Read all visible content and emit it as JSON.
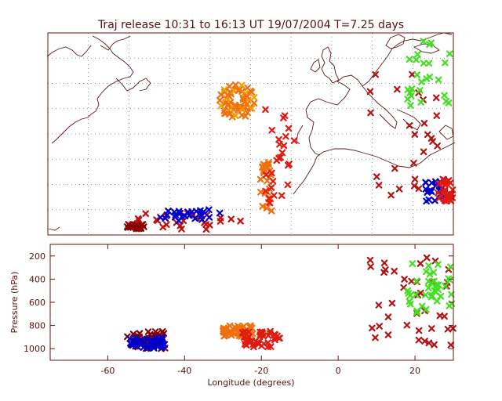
{
  "chart_data": [
    {
      "type": "scatter",
      "title": "Traj release 10:31 to 16:13 UT 19/07/2004    T=7.25 days",
      "marker": "x",
      "projection": "map",
      "x_range": [
        -75,
        30
      ],
      "y_range": [
        0,
        72
      ],
      "grid": true,
      "colors": [
        "#0000cc",
        "#8b0000",
        "#b21414",
        "#e01a10",
        "#f07010",
        "#f0a000",
        "#f0d000",
        "#40e020"
      ],
      "clusters": [
        {
          "name": "",
          "color": "#8b0000",
          "x": [
            -55,
            -50
          ],
          "y": [
            2,
            4
          ]
        },
        {
          "name": "",
          "color": "#c41010",
          "x": [
            -52,
            -25
          ],
          "y": [
            2,
            8
          ]
        },
        {
          "name": "",
          "color": "#0000cc",
          "x": [
            -46,
            -30
          ],
          "y": [
            5,
            9
          ]
        },
        {
          "name": "",
          "color": "#f07010",
          "x": [
            -30,
            -22
          ],
          "y": [
            42,
            52
          ]
        },
        {
          "name": "",
          "color": "#f07010",
          "x": [
            -20,
            -17
          ],
          "y": [
            8,
            26
          ]
        },
        {
          "name": "",
          "color": "#e01a10",
          "x": [
            -19,
            -11
          ],
          "y": [
            10,
            45
          ]
        },
        {
          "name": "",
          "color": "#b21414",
          "x": [
            8,
            26
          ],
          "y": [
            14,
            58
          ]
        },
        {
          "name": "",
          "color": "#40e020",
          "x": [
            18,
            30
          ],
          "y": [
            45,
            70
          ]
        },
        {
          "name": "",
          "color": "#0000cc",
          "x": [
            22,
            28
          ],
          "y": [
            12,
            20
          ]
        },
        {
          "name": "",
          "color": "#e01a10",
          "x": [
            26,
            30
          ],
          "y": [
            12,
            20
          ]
        }
      ]
    },
    {
      "type": "scatter",
      "xlabel": "Longitude  (degrees)",
      "ylabel": "Pressure  (hPa)",
      "x_range": [
        -75,
        30
      ],
      "y_range": [
        1100,
        100
      ],
      "x_ticks": [
        "-60",
        "-40",
        "-20",
        "0",
        "20"
      ],
      "y_ticks": [
        "200",
        "400",
        "600",
        "800",
        "1000"
      ],
      "marker": "x",
      "clusters": [
        {
          "name": "",
          "color": "#8b0000",
          "x": [
            -55,
            -45
          ],
          "y": [
            850,
            1000
          ]
        },
        {
          "name": "",
          "color": "#0000cc",
          "x": [
            -55,
            -45
          ],
          "y": [
            900,
            1000
          ]
        },
        {
          "name": "",
          "color": "#f07010",
          "x": [
            -30,
            -22
          ],
          "y": [
            800,
            900
          ]
        },
        {
          "name": "",
          "color": "#e01a10",
          "x": [
            -25,
            -15
          ],
          "y": [
            850,
            1000
          ]
        },
        {
          "name": "",
          "color": "#b21414",
          "x": [
            8,
            30
          ],
          "y": [
            200,
            1000
          ]
        },
        {
          "name": "",
          "color": "#40e020",
          "x": [
            18,
            30
          ],
          "y": [
            250,
            700
          ]
        }
      ]
    }
  ]
}
